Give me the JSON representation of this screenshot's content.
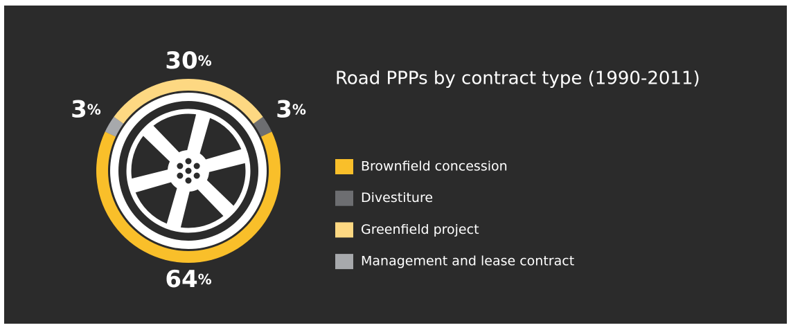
{
  "chart_data": {
    "type": "donut",
    "title": "Road PPPs by contract type (1990-2011)",
    "categories": [
      "Brownfield concession",
      "Divestiture",
      "Greenfield project",
      "Management and lease contract"
    ],
    "values": [
      64,
      3,
      30,
      3
    ],
    "value_labels": [
      "64%",
      "3%",
      "30%",
      "3%"
    ],
    "colors": [
      "#f9bf2a",
      "#6d6e71",
      "#fdd882",
      "#a7a9ac"
    ]
  }
}
